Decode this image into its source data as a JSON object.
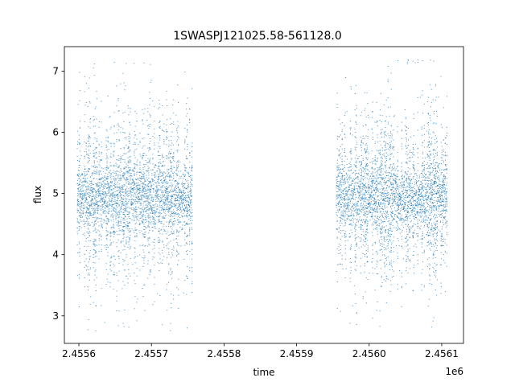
{
  "chart_data": {
    "type": "scatter",
    "title": "1SWASPJ121025.58-561128.0",
    "xlabel": "time",
    "ylabel": "flux",
    "x_offset_label": "1e6",
    "xlim": [
      2455580,
      2456130
    ],
    "ylim": [
      2.55,
      7.4
    ],
    "x_ticks": [
      2455600,
      2455700,
      2455800,
      2455900,
      2456000,
      2456100
    ],
    "x_tick_labels": [
      "2.4556",
      "2.4557",
      "2.4558",
      "2.4559",
      "2.4560",
      "2.4561"
    ],
    "y_ticks": [
      3,
      4,
      5,
      6,
      7
    ],
    "y_tick_labels": [
      "3",
      "4",
      "5",
      "6",
      "7"
    ],
    "grid": false,
    "marker_color": "#1f77b4",
    "series": [
      {
        "segments": [
          {
            "x_start": 2455598,
            "x_end": 2455756,
            "median": 4.95,
            "core_spread": 0.25,
            "min": 2.75,
            "max": 7.15
          },
          {
            "x_start": 2455955,
            "x_end": 2456107,
            "median": 4.95,
            "core_spread": 0.25,
            "min": 2.8,
            "max": 7.2
          }
        ]
      }
    ]
  }
}
